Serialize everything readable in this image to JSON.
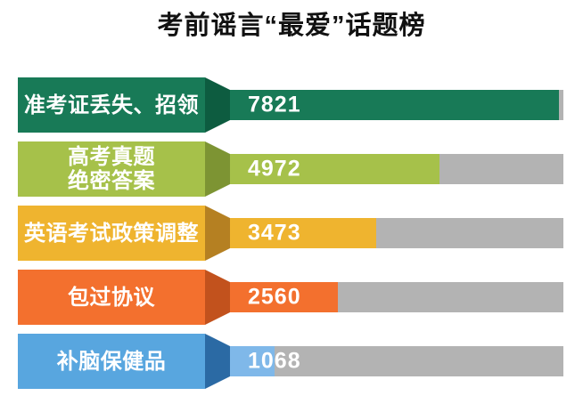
{
  "title": "考前谣言“最爱”话题榜",
  "colors": {
    "track": "#b3b3b3",
    "title_text": "#111111",
    "label_text": "#ffffff",
    "value_text": "#ffffff",
    "background": "#ffffff"
  },
  "rows": [
    {
      "label_lines": [
        "准考证丢失、招领"
      ],
      "value": 7821,
      "value_label": "7821",
      "colors": {
        "box": "#187a57",
        "funnel": "#0d5c40",
        "bar": "#187a57"
      }
    },
    {
      "label_lines": [
        "高考真题",
        "绝密答案"
      ],
      "value": 4972,
      "value_label": "4972",
      "colors": {
        "box": "#a6c14a",
        "funnel": "#7d9433",
        "bar": "#a6c14a"
      }
    },
    {
      "label_lines": [
        "英语考试政策调整"
      ],
      "value": 3473,
      "value_label": "3473",
      "colors": {
        "box": "#efb42f",
        "funnel": "#b58022",
        "bar": "#efb42f"
      }
    },
    {
      "label_lines": [
        "包过协议"
      ],
      "value": 2560,
      "value_label": "2560",
      "colors": {
        "box": "#f3702e",
        "funnel": "#c2521d",
        "bar": "#f3702e"
      }
    },
    {
      "label_lines": [
        "补脑保健品"
      ],
      "value": 1068,
      "value_label": "1068",
      "colors": {
        "box": "#58a6df",
        "funnel": "#2b6aa4",
        "bar": "#7fb8e9"
      }
    }
  ],
  "chart_data": {
    "type": "bar",
    "orientation": "horizontal",
    "title": "考前谣言“最爱”话题榜",
    "categories": [
      "准考证丢失、招领",
      "高考真题 绝密答案",
      "英语考试政策调整",
      "包过协议",
      "补脑保健品"
    ],
    "values": [
      7821,
      4972,
      3473,
      2560,
      1068
    ],
    "data_labels": [
      7821,
      4972,
      3473,
      2560,
      1068
    ],
    "xlim": [
      0,
      7930
    ],
    "grid": false,
    "legend": "none",
    "bar_colors": [
      "#187a57",
      "#a6c14a",
      "#efb42f",
      "#f3702e",
      "#7fb8e9"
    ],
    "track_color": "#b3b3b3"
  }
}
